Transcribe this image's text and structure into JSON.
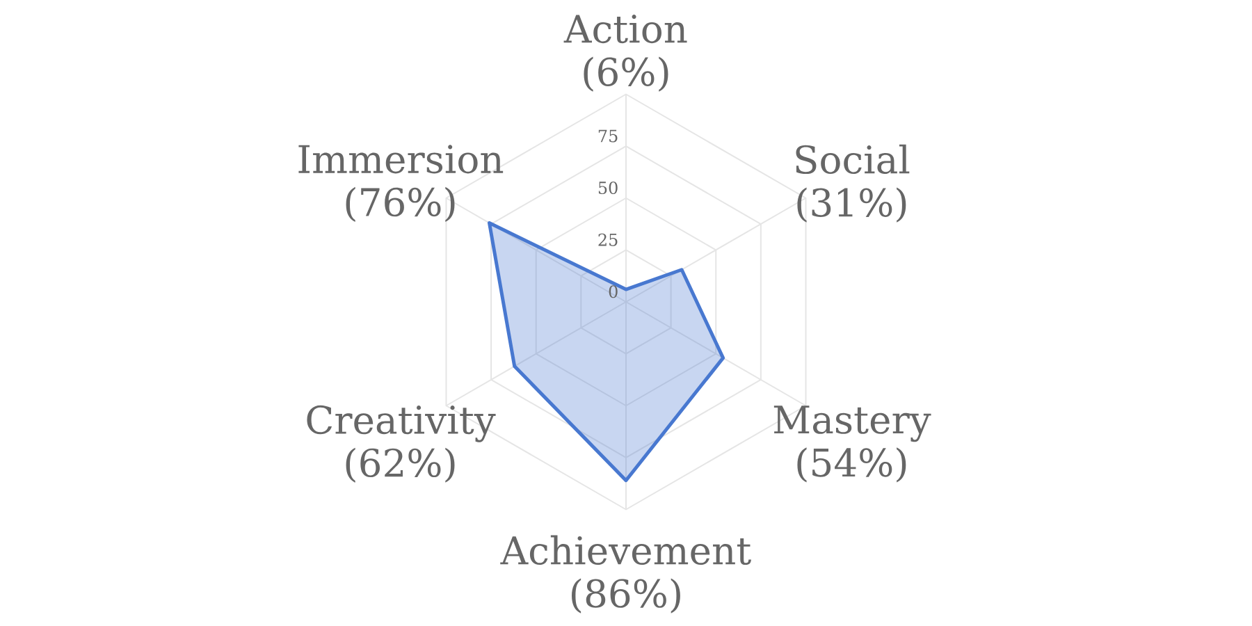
{
  "chart_data": {
    "type": "radar",
    "categories": [
      "Action (6%)",
      "Social (31%)",
      "Mastery (54%)",
      "Achievement (86%)",
      "Creativity (62%)",
      "Immersion (76%)"
    ],
    "series": [
      {
        "color": "#4878d0",
        "values": [
          6,
          31,
          54,
          86,
          62,
          76
        ]
      }
    ],
    "ylim": [
      0,
      100
    ],
    "yticks": [
      0,
      25,
      50,
      75
    ],
    "grid": true
  }
}
